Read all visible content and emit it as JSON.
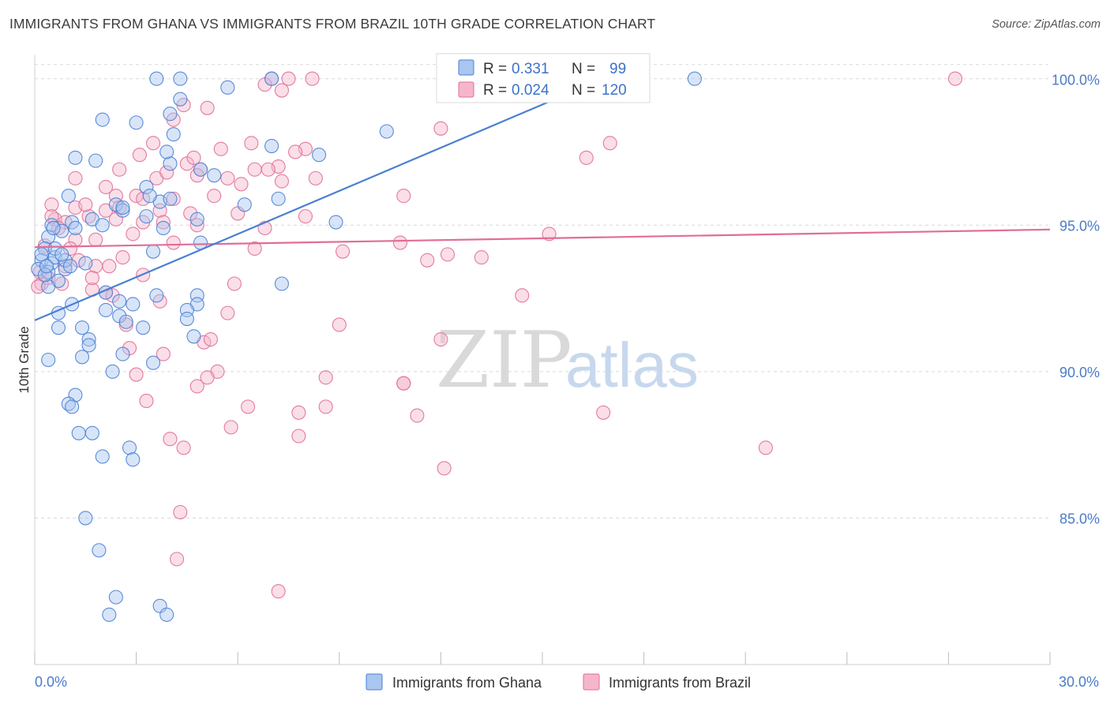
{
  "title": "IMMIGRANTS FROM GHANA VS IMMIGRANTS FROM BRAZIL 10TH GRADE CORRELATION CHART",
  "source": "Source: ZipAtlas.com",
  "watermark": {
    "zip": "ZIP",
    "atlas": "atlas"
  },
  "colors": {
    "ghana": "#4a7fd4",
    "ghana_fill": "#a9c6f0",
    "brazil": "#e06e96",
    "brazil_fill": "#f5b6cb",
    "axis_text": "#4a7cc9",
    "grid": "#d8d8d8"
  },
  "stats": {
    "ghana": {
      "r_label": "R =",
      "r_value": "0.331",
      "n_label": "N =",
      "n_value": "99"
    },
    "brazil": {
      "r_label": "R =",
      "r_value": "0.024",
      "n_label": "N =",
      "n_value": "120"
    }
  },
  "legend": {
    "ghana": "Immigrants from Ghana",
    "brazil": "Immigrants from Brazil"
  },
  "chart_data": {
    "type": "scatter",
    "title": "IMMIGRANTS FROM GHANA VS IMMIGRANTS FROM BRAZIL 10TH GRADE CORRELATION CHART",
    "xlabel": "",
    "ylabel": "10th Grade",
    "xlim": [
      0,
      30
    ],
    "ylim": [
      80.0,
      100.8
    ],
    "x_tick_labels": [
      "0.0%",
      "30.0%"
    ],
    "y_ticks": [
      85,
      90,
      95,
      100
    ],
    "y_tick_labels": [
      "85.0%",
      "90.0%",
      "95.0%",
      "100.0%"
    ],
    "grid": "horizontal dashed",
    "legend_position": "bottom-center",
    "series": [
      {
        "name": "Immigrants from Ghana",
        "r": 0.331,
        "n": 99,
        "trend": {
          "x": [
            0.0,
            16.8
          ],
          "y": [
            91.75,
            100.0
          ]
        },
        "points": [
          [
            3.6,
            100
          ],
          [
            4.3,
            100
          ],
          [
            7.0,
            100
          ],
          [
            19.5,
            100
          ],
          [
            5.7,
            99.7
          ],
          [
            4.3,
            99.3
          ],
          [
            4.0,
            98.8
          ],
          [
            2.0,
            98.6
          ],
          [
            3.0,
            98.5
          ],
          [
            10.4,
            98.2
          ],
          [
            4.1,
            98.1
          ],
          [
            7.0,
            97.7
          ],
          [
            1.2,
            97.3
          ],
          [
            4.0,
            97.1
          ],
          [
            1.8,
            97.2
          ],
          [
            3.9,
            97.5
          ],
          [
            4.9,
            96.9
          ],
          [
            8.4,
            97.4
          ],
          [
            3.3,
            96.3
          ],
          [
            1.0,
            96.0
          ],
          [
            2.4,
            95.7
          ],
          [
            2.6,
            95.5
          ],
          [
            3.7,
            95.8
          ],
          [
            4.0,
            95.9
          ],
          [
            6.2,
            95.7
          ],
          [
            7.2,
            95.9
          ],
          [
            1.1,
            95.1
          ],
          [
            1.7,
            95.2
          ],
          [
            2.0,
            95.0
          ],
          [
            3.3,
            95.3
          ],
          [
            3.8,
            94.9
          ],
          [
            4.8,
            95.2
          ],
          [
            8.9,
            95.1
          ],
          [
            0.5,
            95.0
          ],
          [
            0.8,
            94.8
          ],
          [
            0.4,
            94.6
          ],
          [
            0.3,
            94.2
          ],
          [
            0.2,
            93.8
          ],
          [
            0.1,
            93.5
          ],
          [
            0.5,
            93.7
          ],
          [
            0.4,
            93.4
          ],
          [
            0.6,
            93.9
          ],
          [
            0.9,
            93.5
          ],
          [
            1.5,
            93.7
          ],
          [
            0.7,
            93.1
          ],
          [
            0.4,
            92.9
          ],
          [
            3.5,
            94.1
          ],
          [
            4.9,
            94.4
          ],
          [
            1.1,
            92.3
          ],
          [
            2.1,
            92.7
          ],
          [
            2.5,
            92.4
          ],
          [
            2.9,
            92.3
          ],
          [
            2.1,
            92.1
          ],
          [
            0.7,
            92.0
          ],
          [
            2.5,
            91.9
          ],
          [
            2.7,
            91.7
          ],
          [
            3.2,
            91.5
          ],
          [
            3.6,
            92.6
          ],
          [
            4.8,
            92.6
          ],
          [
            4.8,
            92.3
          ],
          [
            4.5,
            92.1
          ],
          [
            4.5,
            91.8
          ],
          [
            1.4,
            91.5
          ],
          [
            0.7,
            91.5
          ],
          [
            1.6,
            91.1
          ],
          [
            1.6,
            90.9
          ],
          [
            4.7,
            91.2
          ],
          [
            2.6,
            90.6
          ],
          [
            1.4,
            90.5
          ],
          [
            3.5,
            90.3
          ],
          [
            0.4,
            90.4
          ],
          [
            2.3,
            90.0
          ],
          [
            7.3,
            93.0
          ],
          [
            1.2,
            89.2
          ],
          [
            1.0,
            88.9
          ],
          [
            1.1,
            88.8
          ],
          [
            1.3,
            87.9
          ],
          [
            1.7,
            87.9
          ],
          [
            2.0,
            87.1
          ],
          [
            2.8,
            87.4
          ],
          [
            2.9,
            87.0
          ],
          [
            1.5,
            85.0
          ],
          [
            1.9,
            83.9
          ],
          [
            2.4,
            82.3
          ],
          [
            2.2,
            81.7
          ],
          [
            3.7,
            82.0
          ],
          [
            3.9,
            81.7
          ],
          [
            0.2,
            94.0
          ],
          [
            0.3,
            93.3
          ],
          [
            0.6,
            94.2
          ],
          [
            1.2,
            94.9
          ],
          [
            0.9,
            93.8
          ],
          [
            5.3,
            96.7
          ],
          [
            3.4,
            96.0
          ],
          [
            2.6,
            95.6
          ],
          [
            0.8,
            94.0
          ],
          [
            0.35,
            93.6
          ],
          [
            0.55,
            94.9
          ],
          [
            1.05,
            93.6
          ]
        ]
      },
      {
        "name": "Immigrants from Brazil",
        "r": 0.024,
        "n": 120,
        "trend": {
          "x": [
            0.0,
            30.0
          ],
          "y": [
            94.25,
            94.85
          ]
        },
        "points": [
          [
            7.0,
            100
          ],
          [
            7.5,
            100
          ],
          [
            8.2,
            100
          ],
          [
            27.2,
            100
          ],
          [
            6.8,
            99.8
          ],
          [
            7.3,
            99.6
          ],
          [
            4.4,
            99.1
          ],
          [
            5.1,
            99.0
          ],
          [
            4.1,
            98.6
          ],
          [
            12.0,
            98.3
          ],
          [
            3.5,
            97.8
          ],
          [
            6.4,
            97.8
          ],
          [
            8.0,
            97.6
          ],
          [
            17.0,
            97.8
          ],
          [
            3.1,
            97.4
          ],
          [
            5.5,
            97.6
          ],
          [
            7.7,
            97.5
          ],
          [
            16.3,
            97.3
          ],
          [
            4.5,
            97.1
          ],
          [
            7.2,
            97.0
          ],
          [
            4.9,
            96.9
          ],
          [
            6.5,
            96.9
          ],
          [
            6.9,
            96.9
          ],
          [
            1.2,
            96.6
          ],
          [
            2.5,
            96.9
          ],
          [
            3.6,
            96.6
          ],
          [
            4.8,
            96.7
          ],
          [
            5.7,
            96.6
          ],
          [
            6.1,
            96.4
          ],
          [
            7.3,
            96.5
          ],
          [
            8.3,
            96.6
          ],
          [
            2.1,
            96.3
          ],
          [
            2.4,
            96.0
          ],
          [
            3.0,
            96.0
          ],
          [
            3.2,
            95.9
          ],
          [
            4.1,
            95.9
          ],
          [
            5.3,
            96.0
          ],
          [
            10.9,
            96.0
          ],
          [
            0.5,
            95.7
          ],
          [
            1.2,
            95.6
          ],
          [
            2.1,
            95.5
          ],
          [
            2.5,
            95.6
          ],
          [
            3.7,
            95.5
          ],
          [
            4.6,
            95.4
          ],
          [
            6.0,
            95.4
          ],
          [
            8.0,
            95.3
          ],
          [
            0.6,
            95.2
          ],
          [
            0.9,
            95.1
          ],
          [
            1.6,
            95.3
          ],
          [
            2.4,
            95.2
          ],
          [
            3.2,
            95.1
          ],
          [
            3.8,
            95.1
          ],
          [
            4.8,
            95.0
          ],
          [
            6.8,
            94.9
          ],
          [
            15.2,
            94.7
          ],
          [
            1.2,
            94.5
          ],
          [
            1.8,
            94.5
          ],
          [
            4.1,
            94.4
          ],
          [
            10.8,
            94.4
          ],
          [
            6.5,
            94.2
          ],
          [
            9.1,
            94.1
          ],
          [
            12.2,
            94.0
          ],
          [
            13.2,
            93.9
          ],
          [
            11.6,
            93.8
          ],
          [
            1.3,
            93.8
          ],
          [
            1.8,
            93.6
          ],
          [
            2.6,
            93.9
          ],
          [
            2.2,
            93.6
          ],
          [
            0.9,
            93.6
          ],
          [
            0.4,
            93.2
          ],
          [
            0.2,
            93.0
          ],
          [
            3.2,
            93.3
          ],
          [
            5.9,
            93.0
          ],
          [
            14.4,
            92.6
          ],
          [
            1.7,
            92.8
          ],
          [
            2.1,
            92.7
          ],
          [
            3.7,
            92.4
          ],
          [
            5.7,
            92.0
          ],
          [
            9.0,
            91.6
          ],
          [
            5.0,
            91.0
          ],
          [
            5.2,
            91.1
          ],
          [
            12.0,
            91.1
          ],
          [
            2.7,
            91.6
          ],
          [
            2.8,
            90.8
          ],
          [
            3.8,
            90.6
          ],
          [
            5.4,
            90.0
          ],
          [
            3.0,
            89.9
          ],
          [
            8.6,
            89.8
          ],
          [
            10.9,
            89.6
          ],
          [
            3.3,
            89.0
          ],
          [
            4.8,
            89.5
          ],
          [
            6.3,
            88.8
          ],
          [
            7.8,
            88.6
          ],
          [
            8.6,
            88.8
          ],
          [
            11.3,
            88.5
          ],
          [
            16.8,
            88.6
          ],
          [
            5.8,
            88.1
          ],
          [
            7.8,
            87.8
          ],
          [
            4.0,
            87.7
          ],
          [
            4.4,
            87.4
          ],
          [
            21.6,
            87.4
          ],
          [
            12.1,
            86.7
          ],
          [
            4.3,
            85.2
          ],
          [
            4.2,
            83.6
          ],
          [
            7.2,
            82.5
          ],
          [
            0.15,
            93.4
          ],
          [
            0.3,
            94.3
          ],
          [
            0.5,
            95.3
          ],
          [
            0.7,
            94.9
          ],
          [
            0.1,
            92.9
          ],
          [
            1.05,
            94.2
          ],
          [
            1.5,
            95.7
          ],
          [
            2.9,
            94.7
          ],
          [
            3.9,
            96.8
          ],
          [
            4.7,
            97.3
          ],
          [
            10.9,
            89.6
          ],
          [
            5.1,
            89.8
          ],
          [
            0.8,
            93.0
          ],
          [
            1.7,
            93.2
          ],
          [
            2.3,
            92.6
          ]
        ]
      }
    ]
  }
}
